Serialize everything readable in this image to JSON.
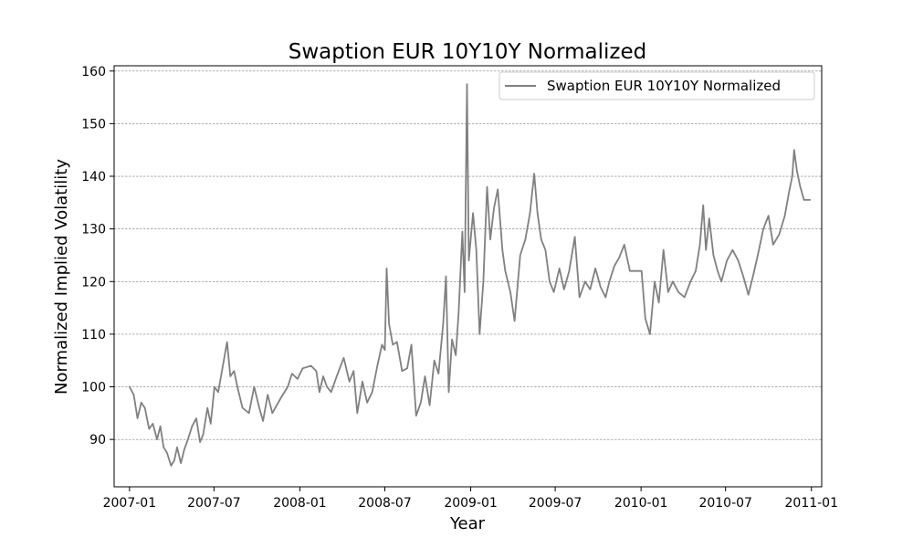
{
  "chart_data": {
    "type": "line",
    "title": "Swaption EUR 10Y10Y Normalized",
    "xlabel": "Year",
    "ylabel": "Normalized Implied Volatility",
    "xlim": [
      "2006-11-29",
      "2011-01-23"
    ],
    "ylim": [
      81,
      161
    ],
    "x_ticks": [
      "2007-01",
      "2007-07",
      "2008-01",
      "2008-07",
      "2009-01",
      "2009-07",
      "2010-01",
      "2010-07",
      "2011-01"
    ],
    "y_ticks": [
      90,
      100,
      110,
      120,
      130,
      140,
      150,
      160
    ],
    "grid": "horizontal dashed",
    "legend": "top-right",
    "colors": {
      "line": "#808080",
      "grid": "#808080"
    },
    "series": [
      {
        "name": "Swaption EUR 10Y10Y Normalized",
        "points": [
          [
            "2007-01-01",
            100
          ],
          [
            "2007-01-10",
            98.5
          ],
          [
            "2007-01-18",
            94
          ],
          [
            "2007-01-26",
            97
          ],
          [
            "2007-02-03",
            96
          ],
          [
            "2007-02-12",
            92
          ],
          [
            "2007-02-20",
            93
          ],
          [
            "2007-03-01",
            90
          ],
          [
            "2007-03-08",
            92.5
          ],
          [
            "2007-03-15",
            88.5
          ],
          [
            "2007-03-22",
            87.5
          ],
          [
            "2007-03-31",
            85
          ],
          [
            "2007-04-07",
            86
          ],
          [
            "2007-04-13",
            88.5
          ],
          [
            "2007-04-21",
            85.5
          ],
          [
            "2007-04-28",
            88
          ],
          [
            "2007-05-06",
            90
          ],
          [
            "2007-05-15",
            92.5
          ],
          [
            "2007-05-24",
            94
          ],
          [
            "2007-06-01",
            89.5
          ],
          [
            "2007-06-08",
            91
          ],
          [
            "2007-06-17",
            96
          ],
          [
            "2007-06-24",
            93
          ],
          [
            "2007-07-02",
            100
          ],
          [
            "2007-07-10",
            99
          ],
          [
            "2007-07-20",
            104
          ],
          [
            "2007-07-29",
            108.5
          ],
          [
            "2007-08-05",
            102
          ],
          [
            "2007-08-13",
            103
          ],
          [
            "2007-08-20",
            100
          ],
          [
            "2007-08-31",
            96
          ],
          [
            "2007-09-14",
            95
          ],
          [
            "2007-09-25",
            100
          ],
          [
            "2007-10-06",
            96
          ],
          [
            "2007-10-14",
            93.5
          ],
          [
            "2007-10-24",
            98.5
          ],
          [
            "2007-11-03",
            95
          ],
          [
            "2007-11-22",
            98
          ],
          [
            "2007-12-06",
            100
          ],
          [
            "2007-12-15",
            102.5
          ],
          [
            "2007-12-27",
            101.5
          ],
          [
            "2008-01-07",
            103.5
          ],
          [
            "2008-01-25",
            104
          ],
          [
            "2008-02-05",
            103
          ],
          [
            "2008-02-12",
            99
          ],
          [
            "2008-02-20",
            102
          ],
          [
            "2008-02-28",
            100
          ],
          [
            "2008-03-08",
            99
          ],
          [
            "2008-03-20",
            102
          ],
          [
            "2008-04-04",
            105.5
          ],
          [
            "2008-04-16",
            101
          ],
          [
            "2008-04-25",
            103
          ],
          [
            "2008-05-03",
            95
          ],
          [
            "2008-05-14",
            101
          ],
          [
            "2008-05-24",
            97
          ],
          [
            "2008-06-04",
            99
          ],
          [
            "2008-06-15",
            104
          ],
          [
            "2008-06-25",
            108
          ],
          [
            "2008-07-01",
            107
          ],
          [
            "2008-07-05",
            122.5
          ],
          [
            "2008-07-10",
            112
          ],
          [
            "2008-07-18",
            108
          ],
          [
            "2008-07-27",
            108.5
          ],
          [
            "2008-08-07",
            103
          ],
          [
            "2008-08-18",
            103.5
          ],
          [
            "2008-08-27",
            108
          ],
          [
            "2008-09-06",
            94.5
          ],
          [
            "2008-09-16",
            97
          ],
          [
            "2008-09-25",
            102
          ],
          [
            "2008-10-05",
            96.5
          ],
          [
            "2008-10-15",
            105
          ],
          [
            "2008-10-24",
            102.5
          ],
          [
            "2008-11-03",
            112
          ],
          [
            "2008-11-09",
            121
          ],
          [
            "2008-11-15",
            99
          ],
          [
            "2008-11-22",
            109
          ],
          [
            "2008-11-30",
            106
          ],
          [
            "2008-12-06",
            114
          ],
          [
            "2008-12-14",
            129.5
          ],
          [
            "2008-12-19",
            118
          ],
          [
            "2008-12-24",
            157.5
          ],
          [
            "2008-12-28",
            124
          ],
          [
            "2009-01-06",
            133
          ],
          [
            "2009-01-13",
            126
          ],
          [
            "2009-01-20",
            110
          ],
          [
            "2009-01-28",
            120
          ],
          [
            "2009-02-05",
            138
          ],
          [
            "2009-02-12",
            128
          ],
          [
            "2009-02-20",
            134
          ],
          [
            "2009-02-28",
            137.5
          ],
          [
            "2009-03-10",
            126
          ],
          [
            "2009-03-16",
            122
          ],
          [
            "2009-03-27",
            118
          ],
          [
            "2009-04-05",
            112.5
          ],
          [
            "2009-04-17",
            125
          ],
          [
            "2009-04-28",
            128
          ],
          [
            "2009-05-08",
            133
          ],
          [
            "2009-05-17",
            140.5
          ],
          [
            "2009-05-24",
            133
          ],
          [
            "2009-06-01",
            128
          ],
          [
            "2009-06-10",
            126
          ],
          [
            "2009-06-19",
            120
          ],
          [
            "2009-06-28",
            118
          ],
          [
            "2009-07-10",
            122.5
          ],
          [
            "2009-07-20",
            118.5
          ],
          [
            "2009-07-31",
            122
          ],
          [
            "2009-08-12",
            128.5
          ],
          [
            "2009-08-22",
            117
          ],
          [
            "2009-09-03",
            120
          ],
          [
            "2009-09-14",
            118.5
          ],
          [
            "2009-09-25",
            122.5
          ],
          [
            "2009-10-06",
            119
          ],
          [
            "2009-10-17",
            117
          ],
          [
            "2009-10-25",
            120
          ],
          [
            "2009-11-05",
            123
          ],
          [
            "2009-11-15",
            124.5
          ],
          [
            "2009-11-26",
            127
          ],
          [
            "2009-12-08",
            122
          ],
          [
            "2009-12-20",
            122
          ],
          [
            "2010-01-02",
            122
          ],
          [
            "2010-01-10",
            113
          ],
          [
            "2010-01-20",
            110
          ],
          [
            "2010-01-30",
            120
          ],
          [
            "2010-02-08",
            116
          ],
          [
            "2010-02-18",
            126
          ],
          [
            "2010-02-28",
            118
          ],
          [
            "2010-03-10",
            120
          ],
          [
            "2010-03-22",
            118
          ],
          [
            "2010-04-04",
            117
          ],
          [
            "2010-04-17",
            120
          ],
          [
            "2010-04-28",
            122
          ],
          [
            "2010-05-07",
            127
          ],
          [
            "2010-05-14",
            134.5
          ],
          [
            "2010-05-20",
            126
          ],
          [
            "2010-05-27",
            132
          ],
          [
            "2010-06-05",
            125
          ],
          [
            "2010-06-14",
            122
          ],
          [
            "2010-06-22",
            120
          ],
          [
            "2010-07-04",
            124
          ],
          [
            "2010-07-16",
            126
          ],
          [
            "2010-07-28",
            124
          ],
          [
            "2010-08-08",
            121
          ],
          [
            "2010-08-19",
            117.5
          ],
          [
            "2010-08-30",
            121.5
          ],
          [
            "2010-09-08",
            125
          ],
          [
            "2010-09-20",
            130
          ],
          [
            "2010-10-01",
            132.5
          ],
          [
            "2010-10-11",
            127
          ],
          [
            "2010-10-24",
            129
          ],
          [
            "2010-11-05",
            132.5
          ],
          [
            "2010-11-14",
            137
          ],
          [
            "2010-11-21",
            140
          ],
          [
            "2010-11-25",
            145
          ],
          [
            "2010-12-01",
            141
          ],
          [
            "2010-12-08",
            138
          ],
          [
            "2010-12-16",
            135.5
          ],
          [
            "2010-12-29",
            135.5
          ]
        ]
      }
    ]
  }
}
